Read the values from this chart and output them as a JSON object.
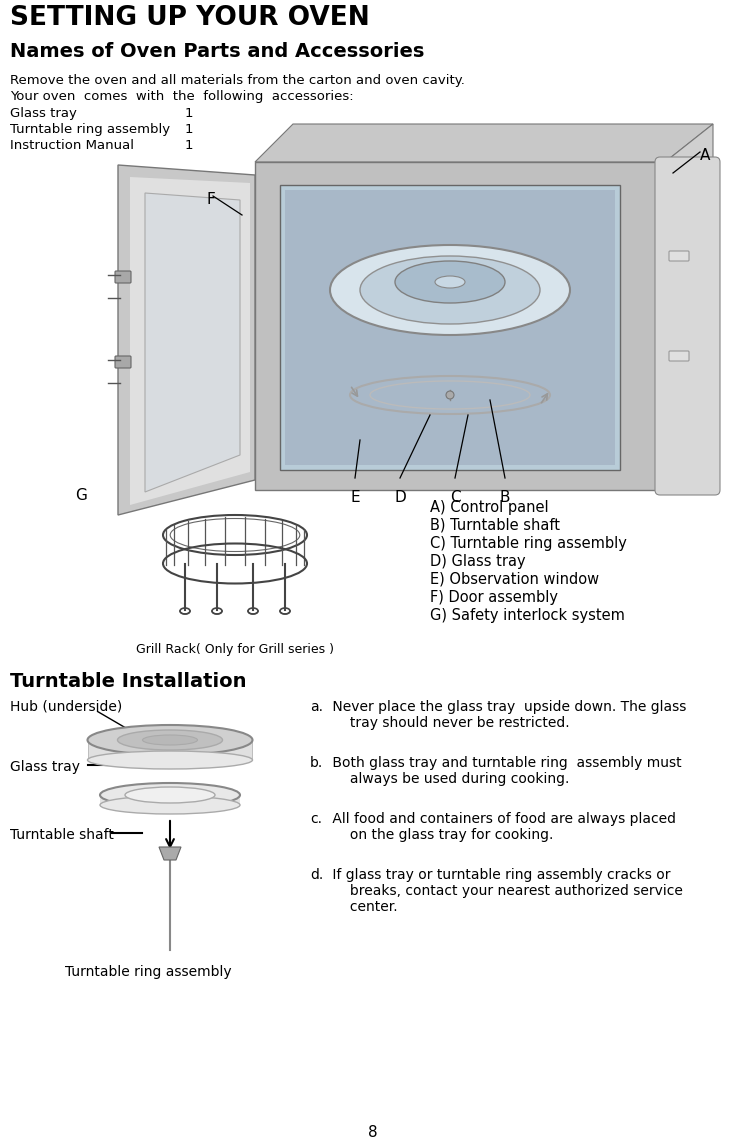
{
  "page_title": "SETTING UP YOUR OVEN",
  "section_title": "Names of Oven Parts and Accessories",
  "intro_line1": "Remove the oven and all materials from the carton and oven cavity.",
  "intro_line2": "Your oven  comes  with  the  following  accessories:",
  "accessories": [
    [
      "Glass tray",
      "1"
    ],
    [
      "Turntable ring assembly",
      "1"
    ],
    [
      "Instruction Manual",
      "1"
    ]
  ],
  "parts_list": [
    "A) Control panel",
    "B) Turntable shaft",
    "C) Turntable ring assembly",
    "D) Glass tray",
    "E) Observation window",
    "F) Door assembly",
    "G) Safety interlock system"
  ],
  "grill_rack_label": "Grill Rack( Only for Grill series )",
  "section2_title": "Turntable Installation",
  "turntable_labels": [
    "Hub (underside)",
    "Glass tray",
    "Turntable shaft",
    "Turntable ring assembly"
  ],
  "instructions": [
    [
      "a.",
      " Never place the glass tray  upside down. The glass",
      "     tray should never be restricted."
    ],
    [
      "b.",
      " Both glass tray and turntable ring  assembly must",
      "     always be used during cooking."
    ],
    [
      "c.",
      " All food and containers of food are always placed",
      "     on the glass tray for cooking."
    ],
    [
      "d.",
      " If glass tray or turntable ring assembly cracks or",
      "     breaks, contact your nearest authorized service",
      "     center."
    ]
  ],
  "page_number": "8",
  "bg_color": "#ffffff",
  "text_color": "#000000"
}
